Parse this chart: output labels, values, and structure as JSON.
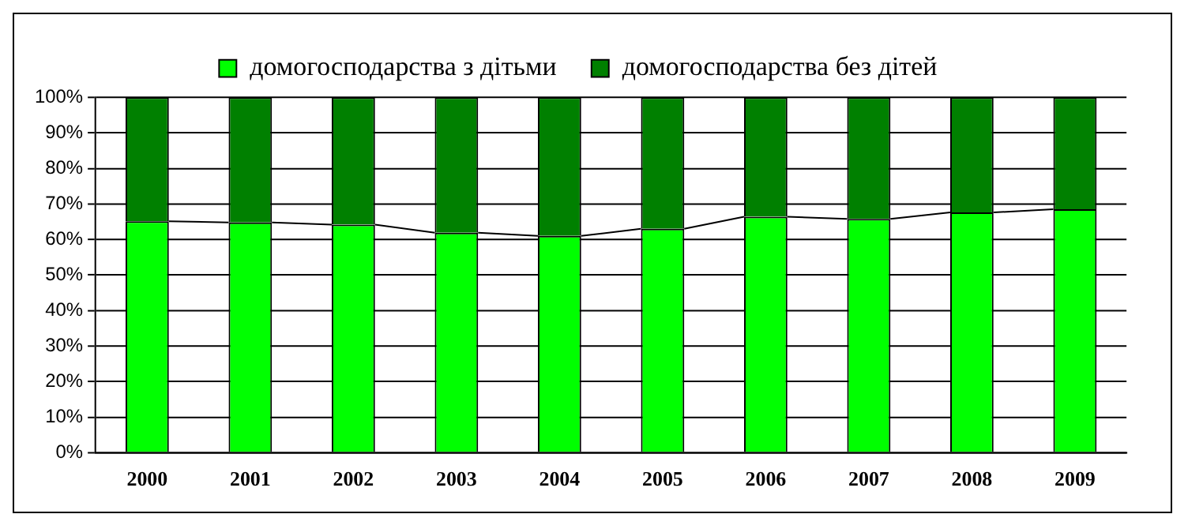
{
  "chart_data": {
    "type": "bar",
    "stacked": true,
    "categories": [
      "2000",
      "2001",
      "2002",
      "2003",
      "2004",
      "2005",
      "2006",
      "2007",
      "2008",
      "2009"
    ],
    "series": [
      {
        "name": "домогосподарства з дітьми",
        "color": "#00ff00",
        "values": [
          65.1,
          64.8,
          64.2,
          61.9,
          61.0,
          63.0,
          66.4,
          65.8,
          67.6,
          68.5
        ]
      },
      {
        "name": "домогосподарства без дітей",
        "color": "#008000",
        "values": [
          34.9,
          35.2,
          35.8,
          38.1,
          39.0,
          37.0,
          33.6,
          34.2,
          32.4,
          31.5
        ]
      }
    ],
    "ylim": [
      0,
      100
    ],
    "yticks": [
      {
        "value": 0,
        "label": "0%"
      },
      {
        "value": 10,
        "label": "10%"
      },
      {
        "value": 20,
        "label": "20%"
      },
      {
        "value": 30,
        "label": "30%"
      },
      {
        "value": 40,
        "label": "40%"
      },
      {
        "value": 50,
        "label": "50%"
      },
      {
        "value": 60,
        "label": "60%"
      },
      {
        "value": 70,
        "label": "70%"
      },
      {
        "value": 80,
        "label": "80%"
      },
      {
        "value": 90,
        "label": "90%"
      },
      {
        "value": 100,
        "label": "100%"
      }
    ],
    "grid": "y",
    "legend": "top"
  }
}
